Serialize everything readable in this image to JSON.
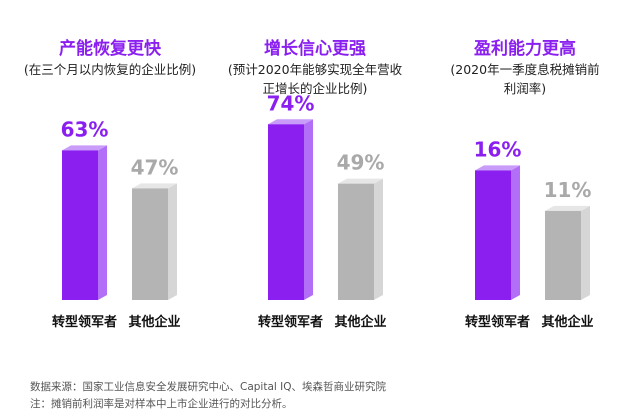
{
  "chart_data": [
    {
      "type": "bar",
      "title": "产能恢复更快",
      "subtitle": [
        "(在三个月以内恢复的企业比例)"
      ],
      "categories": [
        "转型领军者",
        "其他企业"
      ],
      "values": [
        63,
        47
      ],
      "value_labels": [
        "63%",
        "47%"
      ],
      "ylim": [
        0,
        80
      ]
    },
    {
      "type": "bar",
      "title": "增长信心更强",
      "subtitle": [
        "(预计2020年能够实现全年营收",
        "正增长的企业比例)"
      ],
      "categories": [
        "转型领军者",
        "其他企业"
      ],
      "values": [
        74,
        49
      ],
      "value_labels": [
        "74%",
        "49%"
      ],
      "ylim": [
        0,
        80
      ]
    },
    {
      "type": "bar",
      "title": "盈利能力更高",
      "subtitle": [
        "(2020年一季度息税摊销前",
        "利润率)"
      ],
      "categories": [
        "转型领军者",
        "其他企业"
      ],
      "values": [
        16,
        11
      ],
      "value_labels": [
        "16%",
        "11%"
      ],
      "ylim": [
        0,
        20
      ]
    }
  ],
  "colors": {
    "leader": "#8a1ff0",
    "leader_side": "#b26ef7",
    "leader_top": "#c99cf9",
    "other": "#b4b4b4",
    "other_side": "#d6d6d6",
    "other_top": "#e6e6e6",
    "leader_label": "#8a1ff0",
    "other_label": "#a9a9a9"
  },
  "footer": {
    "source": "数据来源：国家工业信息安全发展研究中心、Capital IQ、埃森哲商业研究院",
    "note": "注：摊销前利润率是对样本中上市企业进行的对比分析。"
  }
}
